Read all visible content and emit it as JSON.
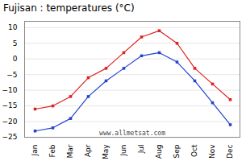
{
  "chart_data": {
    "type": "line",
    "title": "Fujisan : temperatures (°C)",
    "categories": [
      "Jan",
      "Feb",
      "Mar",
      "Apr",
      "May",
      "Jun",
      "Jul",
      "Aug",
      "Sep",
      "Oct",
      "Nov",
      "Dec"
    ],
    "series": [
      {
        "color": "#dd2222",
        "marker": "square",
        "line_style": "solid",
        "values": [
          -16,
          -15,
          -12,
          -6,
          -3,
          2,
          7,
          9,
          5,
          -3,
          -8,
          -13
        ]
      },
      {
        "color": "#2244cc",
        "marker": "square",
        "line_style": "solid",
        "values": [
          -23,
          -22,
          -19,
          -12,
          -7,
          -3,
          1,
          2,
          -1,
          -7,
          -14,
          -21
        ]
      }
    ],
    "ylim": [
      -25,
      12
    ],
    "yticks": [
      -25,
      -20,
      -15,
      -10,
      -5,
      0,
      5,
      10
    ],
    "grid": true,
    "annotations": [
      "www.allmetsat.com"
    ]
  }
}
